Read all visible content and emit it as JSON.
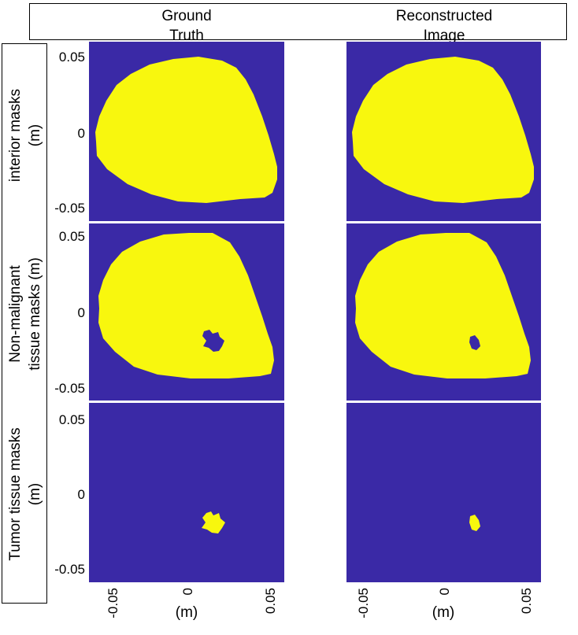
{
  "header": {
    "col1_title": "Ground\nTruth",
    "col2_title": "Reconstructed\nImage"
  },
  "rows": {
    "row1_title": "interior masks\n(m)",
    "row2_title": "Non-malignant\ntissue masks (m)",
    "row3_title": "Tumor tissue masks\n(m)"
  },
  "colors": {
    "background": "#3A29A6",
    "mask": "#F8F70E",
    "separator": "#ffffff"
  },
  "chart_data": {
    "type": "heatmap",
    "xlabel": "(m)",
    "ylabel": "(m)",
    "xlim": [
      -0.06,
      0.06
    ],
    "ylim": [
      -0.057,
      0.057
    ],
    "x_ticks": [
      "-0.05",
      "0",
      "0.05"
    ],
    "y_ticks": [
      "0.05",
      "0",
      "-0.05"
    ],
    "columns": [
      "Ground Truth",
      "Reconstructed Image"
    ],
    "rows": [
      "interior masks",
      "Non-malignant tissue masks",
      "Tumor tissue masks"
    ],
    "values": [
      0,
      1
    ]
  }
}
